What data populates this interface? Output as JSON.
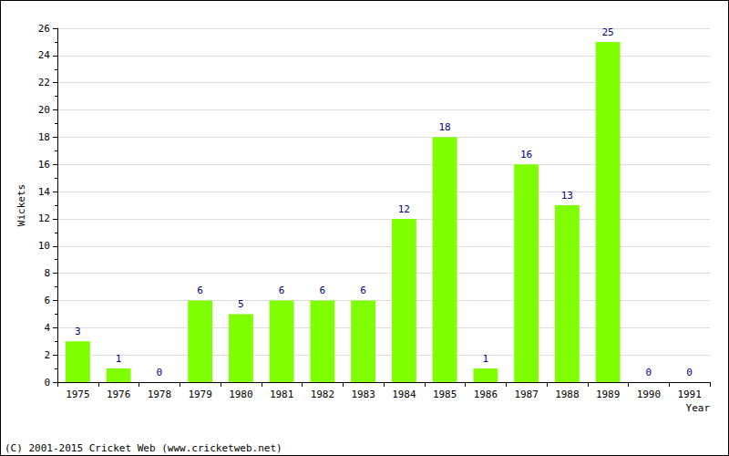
{
  "chart_data": {
    "type": "bar",
    "categories": [
      "1975",
      "1976",
      "1978",
      "1979",
      "1980",
      "1981",
      "1982",
      "1983",
      "1984",
      "1985",
      "1986",
      "1987",
      "1988",
      "1989",
      "1990",
      "1991"
    ],
    "values": [
      3,
      1,
      0,
      6,
      5,
      6,
      6,
      6,
      12,
      18,
      1,
      16,
      13,
      25,
      0,
      0
    ],
    "color": "#7fff00",
    "xlabel": "Year",
    "ylabel": "Wickets",
    "annotations": [
      "(C) 2001-2015 Cricket Web (www.cricketweb.net)"
    ],
    "ylim": [
      0,
      26
    ],
    "yticks": [
      0,
      2,
      4,
      6,
      8,
      10,
      12,
      14,
      16,
      18,
      20,
      22,
      24,
      26
    ],
    "grid": true,
    "data_labels": true
  }
}
